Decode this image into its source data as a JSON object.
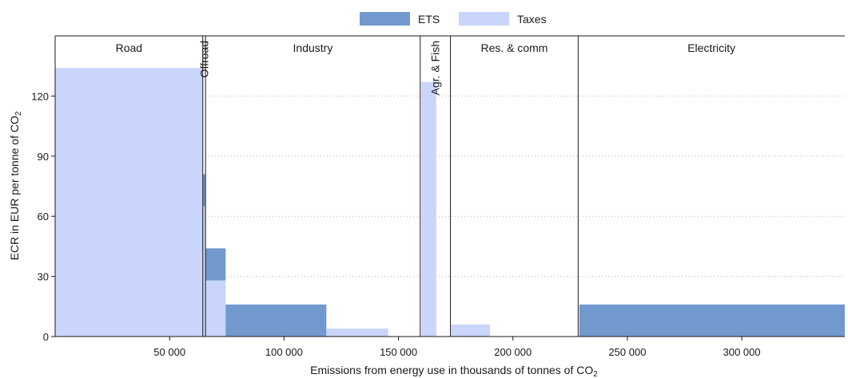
{
  "chart_data": {
    "type": "bar",
    "xlabel": "Emissions from energy use in thousands of tonnes of CO",
    "xlabel_sub": "2",
    "ylabel": "ECR in EUR per tonne of CO",
    "ylabel_sub": "2",
    "xlim": [
      0,
      345000
    ],
    "ylim": [
      0,
      150
    ],
    "x_ticks": [
      50000,
      100000,
      150000,
      200000,
      250000,
      300000
    ],
    "x_tick_labels": [
      "50 000",
      "100 000",
      "150 000",
      "200 000",
      "250 000",
      "300 000"
    ],
    "y_ticks": [
      0,
      30,
      60,
      90,
      120
    ],
    "y_tick_labels": [
      "0",
      "30",
      "60",
      "90",
      "120"
    ],
    "grid": "horizontal dotted",
    "legend_position": "top-center",
    "series": [
      {
        "name": "ETS",
        "color": "#7199cd"
      },
      {
        "name": "Taxes",
        "color": "#c9d5fb"
      }
    ],
    "sectors": [
      {
        "name": "Road",
        "x_start": 0,
        "x_end": 64500,
        "rotated": false
      },
      {
        "name": "Offroad",
        "x_start": 64500,
        "x_end": 65700,
        "rotated": true
      },
      {
        "name": "Industry",
        "x_start": 65700,
        "x_end": 159500,
        "rotated": false
      },
      {
        "name": "Agr. & Fish",
        "x_start": 159500,
        "x_end": 172700,
        "rotated": true
      },
      {
        "name": "Res. & comm",
        "x_start": 172700,
        "x_end": 228500,
        "rotated": false
      },
      {
        "name": "Electricity",
        "x_start": 228500,
        "x_end": 345000,
        "rotated": false
      }
    ],
    "bars": [
      {
        "sector": "Road",
        "x_start": 0,
        "x_end": 64500,
        "taxes": 134,
        "ets": 0
      },
      {
        "sector": "Offroad",
        "x_start": 64500,
        "x_end": 65700,
        "taxes": 65,
        "ets": 16
      },
      {
        "sector": "Industry",
        "x_start": 65700,
        "x_end": 74500,
        "taxes": 28,
        "ets": 16
      },
      {
        "sector": "Industry",
        "x_start": 74500,
        "x_end": 118500,
        "taxes": 0,
        "ets": 16
      },
      {
        "sector": "Industry",
        "x_start": 118500,
        "x_end": 145500,
        "taxes": 4,
        "ets": 0
      },
      {
        "sector": "Agr. & Fish",
        "x_start": 160000,
        "x_end": 166500,
        "taxes": 127,
        "ets": 0
      },
      {
        "sector": "Res. & comm",
        "x_start": 173000,
        "x_end": 190000,
        "taxes": 6,
        "ets": 0
      },
      {
        "sector": "Electricity",
        "x_start": 229000,
        "x_end": 345000,
        "taxes": 0,
        "ets": 16
      }
    ]
  }
}
